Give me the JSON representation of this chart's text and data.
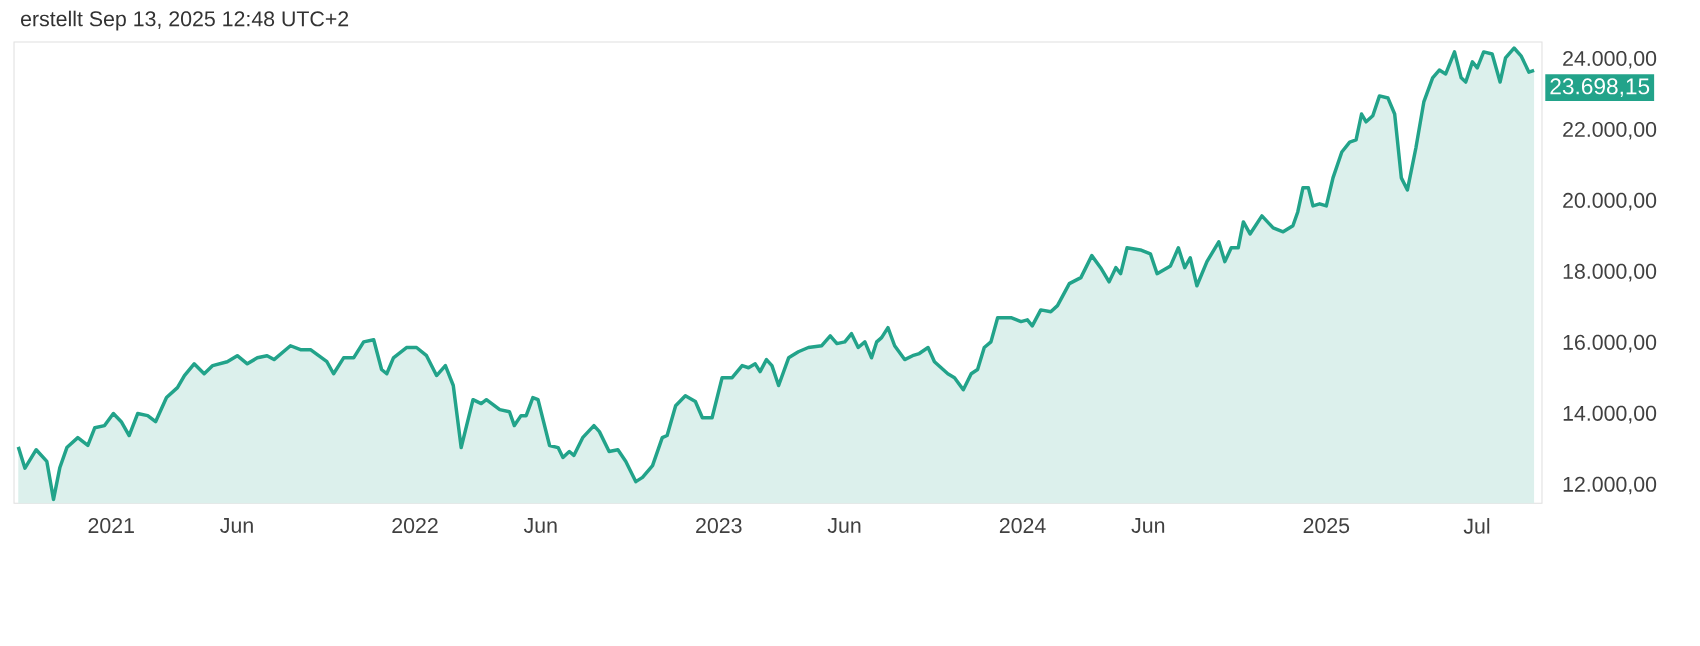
{
  "chart_data": {
    "type": "area",
    "annotations": [
      "erstellt Sep 13, 2025 12:48 UTC+2",
      {
        "text": "23.698,15",
        "x": 2025.684,
        "y": 23700
      }
    ],
    "x": [
      2020.694,
      2020.716,
      2020.753,
      2020.788,
      2020.81,
      2020.831,
      2020.854,
      2020.89,
      2020.923,
      2020.946,
      2020.978,
      2021.007,
      2021.033,
      2021.059,
      2021.087,
      2021.12,
      2021.146,
      2021.182,
      2021.218,
      2021.241,
      2021.273,
      2021.306,
      2021.334,
      2021.382,
      2021.415,
      2021.448,
      2021.481,
      2021.513,
      2021.536,
      2021.59,
      2021.623,
      2021.656,
      2021.71,
      2021.732,
      2021.765,
      2021.798,
      2021.831,
      2021.864,
      2021.89,
      2021.907,
      2021.929,
      2021.972,
      2022.005,
      2022.038,
      2022.071,
      2022.1,
      2022.126,
      2022.152,
      2022.191,
      2022.218,
      2022.235,
      2022.279,
      2022.311,
      2022.327,
      2022.349,
      2022.366,
      2022.388,
      2022.405,
      2022.443,
      2022.471,
      2022.487,
      2022.508,
      2022.523,
      2022.552,
      2022.589,
      2022.607,
      2022.639,
      2022.668,
      2022.694,
      2022.727,
      2022.749,
      2022.782,
      2022.814,
      2022.83,
      2022.858,
      2022.89,
      2022.923,
      2022.946,
      2022.978,
      2023.011,
      2023.044,
      2023.077,
      2023.098,
      2023.12,
      2023.136,
      2023.157,
      2023.175,
      2023.197,
      2023.23,
      2023.262,
      2023.295,
      2023.339,
      2023.367,
      2023.389,
      2023.415,
      2023.437,
      2023.459,
      2023.481,
      2023.503,
      2023.52,
      2023.536,
      2023.557,
      2023.579,
      2023.612,
      2023.638,
      2023.66,
      2023.689,
      2023.71,
      2023.754,
      2023.776,
      2023.805,
      2023.831,
      2023.852,
      2023.874,
      2023.896,
      2023.918,
      2023.962,
      2023.995,
      2024.016,
      2024.032,
      2024.06,
      2024.093,
      2024.115,
      2024.154,
      2024.192,
      2024.228,
      2024.257,
      2024.285,
      2024.307,
      2024.323,
      2024.344,
      2024.388,
      2024.421,
      2024.443,
      2024.487,
      2024.513,
      2024.534,
      2024.552,
      2024.574,
      2024.607,
      2024.646,
      2024.666,
      2024.687,
      2024.71,
      2024.727,
      2024.749,
      2024.788,
      2024.825,
      2024.858,
      2024.89,
      2024.906,
      2024.923,
      2024.941,
      2024.956,
      2024.978,
      2025.0,
      2025.022,
      2025.051,
      2025.077,
      2025.098,
      2025.116,
      2025.131,
      2025.153,
      2025.175,
      2025.203,
      2025.225,
      2025.247,
      2025.267,
      2025.295,
      2025.321,
      2025.35,
      2025.372,
      2025.393,
      2025.422,
      2025.444,
      2025.459,
      2025.481,
      2025.497,
      2025.518,
      2025.546,
      2025.572,
      2025.59,
      2025.618,
      2025.641,
      2025.667,
      2025.684
    ],
    "values": [
      13090,
      12490,
      13010,
      12680,
      11610,
      12510,
      13070,
      13350,
      13130,
      13630,
      13690,
      14030,
      13800,
      13410,
      14030,
      13970,
      13800,
      14480,
      14760,
      15100,
      15430,
      15150,
      15380,
      15490,
      15660,
      15430,
      15600,
      15660,
      15550,
      15940,
      15830,
      15830,
      15490,
      15150,
      15600,
      15600,
      16050,
      16110,
      15270,
      15150,
      15600,
      15890,
      15890,
      15660,
      15100,
      15380,
      14820,
      13070,
      14420,
      14310,
      14420,
      14140,
      14080,
      13690,
      13970,
      13970,
      14480,
      14420,
      13130,
      13070,
      12790,
      12960,
      12850,
      13350,
      13690,
      13520,
      12960,
      13010,
      12680,
      12110,
      12230,
      12560,
      13350,
      13410,
      14250,
      14530,
      14370,
      13910,
      13910,
      15040,
      15040,
      15380,
      15320,
      15430,
      15210,
      15550,
      15380,
      14820,
      15600,
      15770,
      15890,
      15940,
      16220,
      16000,
      16050,
      16280,
      15890,
      16050,
      15600,
      16050,
      16170,
      16450,
      15940,
      15550,
      15660,
      15720,
      15890,
      15490,
      15150,
      15040,
      14700,
      15150,
      15270,
      15890,
      16050,
      16730,
      16730,
      16620,
      16670,
      16500,
      16950,
      16900,
      17070,
      17690,
      17860,
      18480,
      18140,
      17740,
      18140,
      17970,
      18700,
      18640,
      18530,
      17970,
      18190,
      18700,
      18140,
      18420,
      17630,
      18310,
      18870,
      18310,
      18700,
      18700,
      19430,
      19090,
      19600,
      19260,
      19150,
      19320,
      19710,
      20390,
      20390,
      19880,
      19940,
      19880,
      20670,
      21400,
      21680,
      21740,
      22470,
      22250,
      22420,
      22980,
      22920,
      22470,
      20670,
      20330,
      21520,
      22810,
      23490,
      23710,
      23600,
      24220,
      23490,
      23370,
      23940,
      23770,
      24220,
      24160,
      23370,
      24050,
      24330,
      24110,
      23650,
      23700
    ],
    "color": "#22a38a",
    "xlim": [
      2020.68,
      2025.71
    ],
    "xticks": [
      {
        "value": 2021,
        "label": "2021"
      },
      {
        "value": 2021.414,
        "label": "Jun"
      },
      {
        "value": 2022,
        "label": "2022"
      },
      {
        "value": 2022.414,
        "label": "Jun"
      },
      {
        "value": 2023,
        "label": "2023"
      },
      {
        "value": 2023.414,
        "label": "Jun"
      },
      {
        "value": 2024,
        "label": "2024"
      },
      {
        "value": 2024.414,
        "label": "Jun"
      },
      {
        "value": 2025,
        "label": "2025"
      },
      {
        "value": 2025.496,
        "label": "Jul"
      }
    ],
    "ylim": [
      11500,
      24500
    ],
    "yticks": [
      {
        "value": 12000,
        "label": "12.000,00"
      },
      {
        "value": 14000,
        "label": "14.000,00"
      },
      {
        "value": 16000,
        "label": "16.000,00"
      },
      {
        "value": 18000,
        "label": "18.000,00"
      },
      {
        "value": 20000,
        "label": "20.000,00"
      },
      {
        "value": 22000,
        "label": "22.000,00"
      },
      {
        "value": 24000,
        "label": "24.000,00"
      }
    ]
  }
}
